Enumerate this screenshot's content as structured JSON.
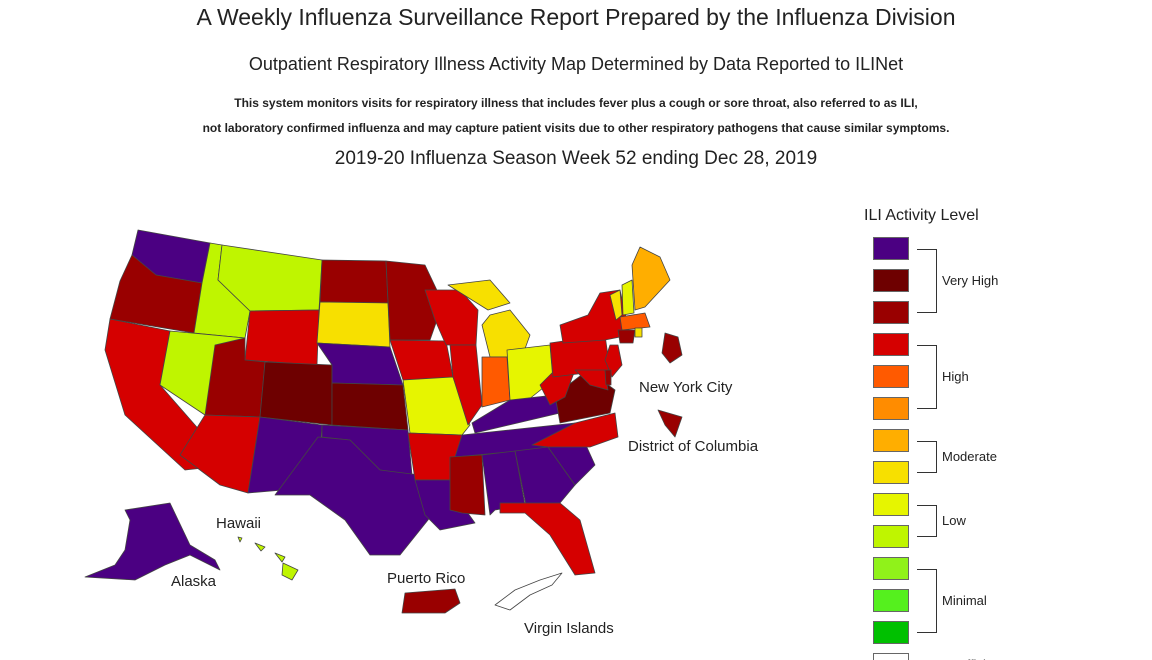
{
  "header": {
    "title": "A Weekly Influenza Surveillance Report Prepared by the Influenza Division",
    "subtitle": "Outpatient Respiratory Illness Activity Map Determined by Data Reported to ILINet",
    "description_line1": "This system monitors visits for respiratory illness that includes fever plus a cough or sore throat, also referred to as ILI,",
    "description_line2": "not laboratory confirmed influenza and may capture patient visits due to other respiratory pathogens that cause similar symptoms.",
    "season": "2019-20 Influenza Season Week 52 ending Dec 28, 2019"
  },
  "map_labels": {
    "hawaii": "Hawaii",
    "alaska": "Alaska",
    "puerto_rico": "Puerto Rico",
    "virgin_islands": "Virgin Islands",
    "nyc": "New York City",
    "dc": "District of Columbia"
  },
  "legend": {
    "title": "ILI Activity Level",
    "levels": [
      {
        "level": 13,
        "color": "#4B0082"
      },
      {
        "level": 12,
        "color": "#6E0000"
      },
      {
        "level": 11,
        "color": "#990000"
      },
      {
        "level": 10,
        "color": "#D50000"
      },
      {
        "level": 9,
        "color": "#FF5A00"
      },
      {
        "level": 8,
        "color": "#FF8C00"
      },
      {
        "level": 7,
        "color": "#FFAE00"
      },
      {
        "level": 6,
        "color": "#F7E000"
      },
      {
        "level": 5,
        "color": "#E6F500"
      },
      {
        "level": 4,
        "color": "#BFF500"
      },
      {
        "level": 3,
        "color": "#90F21A"
      },
      {
        "level": 2,
        "color": "#55F01E"
      },
      {
        "level": 1,
        "color": "#00C000"
      },
      {
        "level": 0,
        "color": "#FFFFFF"
      }
    ],
    "groups": [
      {
        "label": "Very High",
        "levels": [
          13,
          11
        ]
      },
      {
        "label": "High",
        "levels": [
          10,
          8
        ]
      },
      {
        "label": "Moderate",
        "levels": [
          7,
          6
        ]
      },
      {
        "label": "Low",
        "levels": [
          5,
          4
        ]
      },
      {
        "label": "Minimal",
        "levels": [
          3,
          1
        ]
      }
    ],
    "insufficient_label": "Insufficient Data"
  },
  "states": [
    {
      "name": "Washington",
      "level": 13
    },
    {
      "name": "Oregon",
      "level": 11
    },
    {
      "name": "California",
      "level": 10
    },
    {
      "name": "Idaho",
      "level": 4
    },
    {
      "name": "Nevada",
      "level": 4
    },
    {
      "name": "Montana",
      "level": 4
    },
    {
      "name": "Wyoming",
      "level": 10
    },
    {
      "name": "Utah",
      "level": 11
    },
    {
      "name": "Arizona",
      "level": 10
    },
    {
      "name": "Colorado",
      "level": 12
    },
    {
      "name": "New Mexico",
      "level": 13
    },
    {
      "name": "North Dakota",
      "level": 11
    },
    {
      "name": "South Dakota",
      "level": 6
    },
    {
      "name": "Nebraska",
      "level": 13
    },
    {
      "name": "Kansas",
      "level": 12
    },
    {
      "name": "Oklahoma",
      "level": 13
    },
    {
      "name": "Texas",
      "level": 13
    },
    {
      "name": "Minnesota",
      "level": 11
    },
    {
      "name": "Iowa",
      "level": 10
    },
    {
      "name": "Missouri",
      "level": 5
    },
    {
      "name": "Arkansas",
      "level": 10
    },
    {
      "name": "Louisiana",
      "level": 13
    },
    {
      "name": "Wisconsin",
      "level": 10
    },
    {
      "name": "Illinois",
      "level": 10
    },
    {
      "name": "Michigan",
      "level": 6
    },
    {
      "name": "Indiana",
      "level": 9
    },
    {
      "name": "Ohio",
      "level": 5
    },
    {
      "name": "Kentucky",
      "level": 13
    },
    {
      "name": "Tennessee",
      "level": 13
    },
    {
      "name": "Mississippi",
      "level": 11
    },
    {
      "name": "Alabama",
      "level": 13
    },
    {
      "name": "Georgia",
      "level": 13
    },
    {
      "name": "Florida",
      "level": 10
    },
    {
      "name": "South Carolina",
      "level": 13
    },
    {
      "name": "North Carolina",
      "level": 10
    },
    {
      "name": "Virginia",
      "level": 12
    },
    {
      "name": "West Virginia",
      "level": 10
    },
    {
      "name": "Pennsylvania",
      "level": 10
    },
    {
      "name": "New York",
      "level": 10
    },
    {
      "name": "New Jersey",
      "level": 10
    },
    {
      "name": "Maryland",
      "level": 10
    },
    {
      "name": "Delaware",
      "level": 11
    },
    {
      "name": "Vermont",
      "level": 6
    },
    {
      "name": "New Hampshire",
      "level": 5
    },
    {
      "name": "Maine",
      "level": 7
    },
    {
      "name": "Massachusetts",
      "level": 9
    },
    {
      "name": "Connecticut",
      "level": 11
    },
    {
      "name": "Rhode Island",
      "level": 6
    },
    {
      "name": "Alaska",
      "level": 13
    },
    {
      "name": "Hawaii",
      "level": 4
    },
    {
      "name": "Puerto Rico",
      "level": 11
    },
    {
      "name": "Virgin Islands",
      "level": 0
    },
    {
      "name": "New York City",
      "level": 11
    },
    {
      "name": "District of Columbia",
      "level": 11
    }
  ]
}
